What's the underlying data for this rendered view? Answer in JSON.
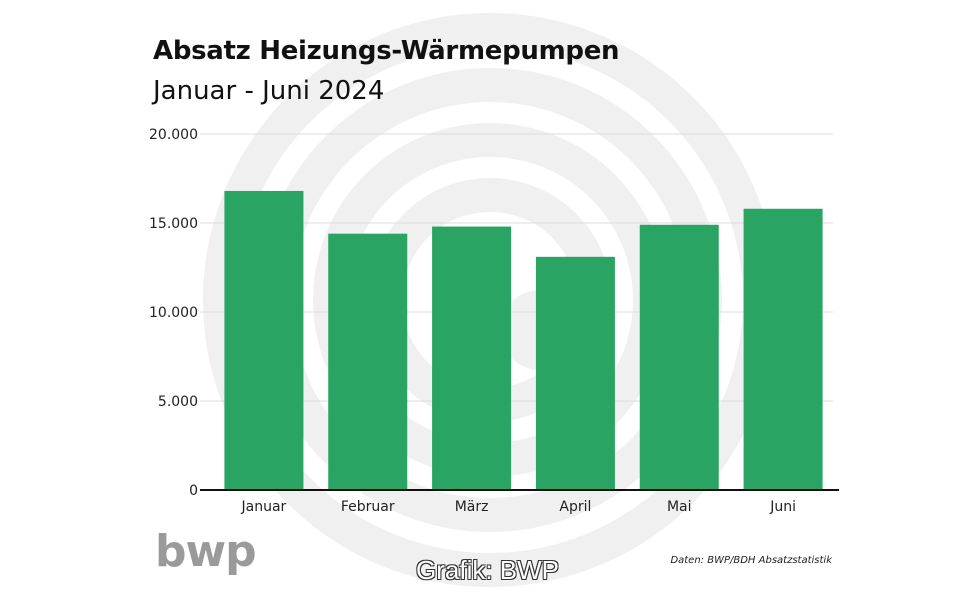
{
  "chart_data": {
    "type": "bar",
    "title": "Absatz Heizungs-Wärmepumpen",
    "subtitle": "Januar - Juni 2024",
    "categories": [
      "Januar",
      "Februar",
      "März",
      "April",
      "Mai",
      "Juni"
    ],
    "values": [
      16800,
      14400,
      14800,
      13100,
      14900,
      15800
    ],
    "ylim": [
      0,
      20000
    ],
    "yticks": [
      {
        "value": 0,
        "label": "0"
      },
      {
        "value": 5000,
        "label": "5.000"
      },
      {
        "value": 10000,
        "label": "10.000"
      },
      {
        "value": 15000,
        "label": "15.000"
      },
      {
        "value": 20000,
        "label": "20.000"
      }
    ],
    "xlabel": "",
    "ylabel": "",
    "grid": true,
    "bar_color": "#2aa463"
  },
  "source": "Daten: BWP/BDH Absatzstatistik",
  "logo_text": "bwp",
  "credit": "Grafik: BWP",
  "colors": {
    "bar": "#2aa463",
    "watermark": "#f0f0f0",
    "grid": "#dcdcdc",
    "axis": "#111111"
  }
}
